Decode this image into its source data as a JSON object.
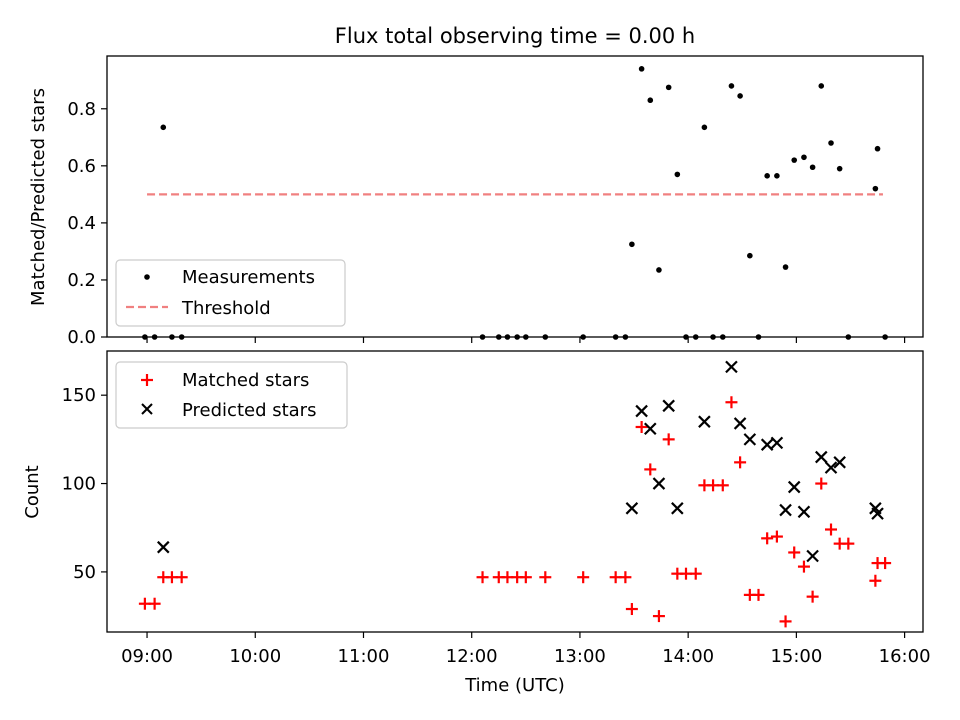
{
  "title": "Flux total observing time = 0.00 h",
  "x_label": "Time (UTC)",
  "x_ticks": [
    "09:00",
    "10:00",
    "11:00",
    "12:00",
    "13:00",
    "14:00",
    "15:00",
    "16:00"
  ],
  "colors": {
    "measurement": "#000000",
    "threshold": "#f08080",
    "matched": "#ff0000",
    "predicted": "#000000"
  },
  "chart_data": [
    {
      "type": "scatter",
      "panel": "top",
      "ylabel": "Matched/Predicted stars",
      "xlim": [
        8.63,
        16.17
      ],
      "ylim": [
        0,
        0.985
      ],
      "yticks": [
        "0.0",
        "0.2",
        "0.4",
        "0.6",
        "0.8"
      ],
      "legend_position": "lower-left",
      "legend": [
        "Measurements",
        "Threshold"
      ],
      "threshold": {
        "name": "Threshold",
        "x": [
          9.0,
          15.8
        ],
        "y": 0.5
      },
      "series": [
        {
          "name": "Measurements",
          "points": [
            [
              8.98,
              0
            ],
            [
              9.07,
              0
            ],
            [
              9.15,
              0.735
            ],
            [
              9.23,
              0
            ],
            [
              9.32,
              0
            ],
            [
              12.1,
              0
            ],
            [
              12.25,
              0
            ],
            [
              12.33,
              0
            ],
            [
              12.42,
              0
            ],
            [
              12.5,
              0
            ],
            [
              12.68,
              0
            ],
            [
              13.03,
              0
            ],
            [
              13.33,
              0
            ],
            [
              13.42,
              0
            ],
            [
              13.48,
              0.325
            ],
            [
              13.57,
              0.94
            ],
            [
              13.65,
              0.83
            ],
            [
              13.73,
              0.235
            ],
            [
              13.82,
              0.875
            ],
            [
              13.9,
              0.57
            ],
            [
              13.98,
              0
            ],
            [
              14.07,
              0
            ],
            [
              14.15,
              0.735
            ],
            [
              14.23,
              0
            ],
            [
              14.32,
              0
            ],
            [
              14.4,
              0.88
            ],
            [
              14.48,
              0.845
            ],
            [
              14.57,
              0.285
            ],
            [
              14.65,
              0
            ],
            [
              14.73,
              0.565
            ],
            [
              14.82,
              0.565
            ],
            [
              14.9,
              0.245
            ],
            [
              14.98,
              0.62
            ],
            [
              15.07,
              0.63
            ],
            [
              15.15,
              0.595
            ],
            [
              15.23,
              0.88
            ],
            [
              15.32,
              0.68
            ],
            [
              15.4,
              0.59
            ],
            [
              15.48,
              0
            ],
            [
              15.73,
              0.52
            ],
            [
              15.75,
              0.66
            ],
            [
              15.82,
              0
            ]
          ]
        }
      ]
    },
    {
      "type": "scatter",
      "panel": "bottom",
      "ylabel": "Count",
      "xlim": [
        8.63,
        16.17
      ],
      "ylim": [
        16,
        175
      ],
      "yticks": [
        "50",
        "100",
        "150"
      ],
      "legend_position": "upper-left",
      "legend": [
        "Matched stars",
        "Predicted stars"
      ],
      "series": [
        {
          "name": "Matched stars",
          "points": [
            [
              8.98,
              32
            ],
            [
              9.07,
              32
            ],
            [
              9.15,
              47
            ],
            [
              9.23,
              47
            ],
            [
              9.32,
              47
            ],
            [
              12.1,
              47
            ],
            [
              12.25,
              47
            ],
            [
              12.33,
              47
            ],
            [
              12.42,
              47
            ],
            [
              12.5,
              47
            ],
            [
              12.68,
              47
            ],
            [
              13.03,
              47
            ],
            [
              13.33,
              47
            ],
            [
              13.42,
              47
            ],
            [
              13.48,
              29
            ],
            [
              13.57,
              132
            ],
            [
              13.65,
              108
            ],
            [
              13.73,
              25
            ],
            [
              13.82,
              125
            ],
            [
              13.9,
              49
            ],
            [
              13.98,
              49
            ],
            [
              14.07,
              49
            ],
            [
              14.15,
              99
            ],
            [
              14.23,
              99
            ],
            [
              14.32,
              99
            ],
            [
              14.4,
              146
            ],
            [
              14.48,
              112
            ],
            [
              14.57,
              37
            ],
            [
              14.65,
              37
            ],
            [
              14.73,
              69
            ],
            [
              14.82,
              70
            ],
            [
              14.9,
              22
            ],
            [
              14.98,
              61
            ],
            [
              15.07,
              53
            ],
            [
              15.15,
              36
            ],
            [
              15.23,
              100
            ],
            [
              15.32,
              74
            ],
            [
              15.4,
              66
            ],
            [
              15.48,
              66
            ],
            [
              15.73,
              45
            ],
            [
              15.75,
              55
            ],
            [
              15.82,
              55
            ]
          ]
        },
        {
          "name": "Predicted stars",
          "points": [
            [
              9.15,
              64
            ],
            [
              13.48,
              86
            ],
            [
              13.57,
              141
            ],
            [
              13.65,
              131
            ],
            [
              13.73,
              100
            ],
            [
              13.82,
              144
            ],
            [
              13.9,
              86
            ],
            [
              14.15,
              135
            ],
            [
              14.4,
              166
            ],
            [
              14.48,
              134
            ],
            [
              14.57,
              125
            ],
            [
              14.73,
              122
            ],
            [
              14.82,
              123
            ],
            [
              14.9,
              85
            ],
            [
              14.98,
              98
            ],
            [
              15.07,
              84
            ],
            [
              15.15,
              59
            ],
            [
              15.23,
              115
            ],
            [
              15.32,
              109
            ],
            [
              15.4,
              112
            ],
            [
              15.73,
              86
            ],
            [
              15.75,
              83
            ]
          ]
        }
      ]
    }
  ]
}
